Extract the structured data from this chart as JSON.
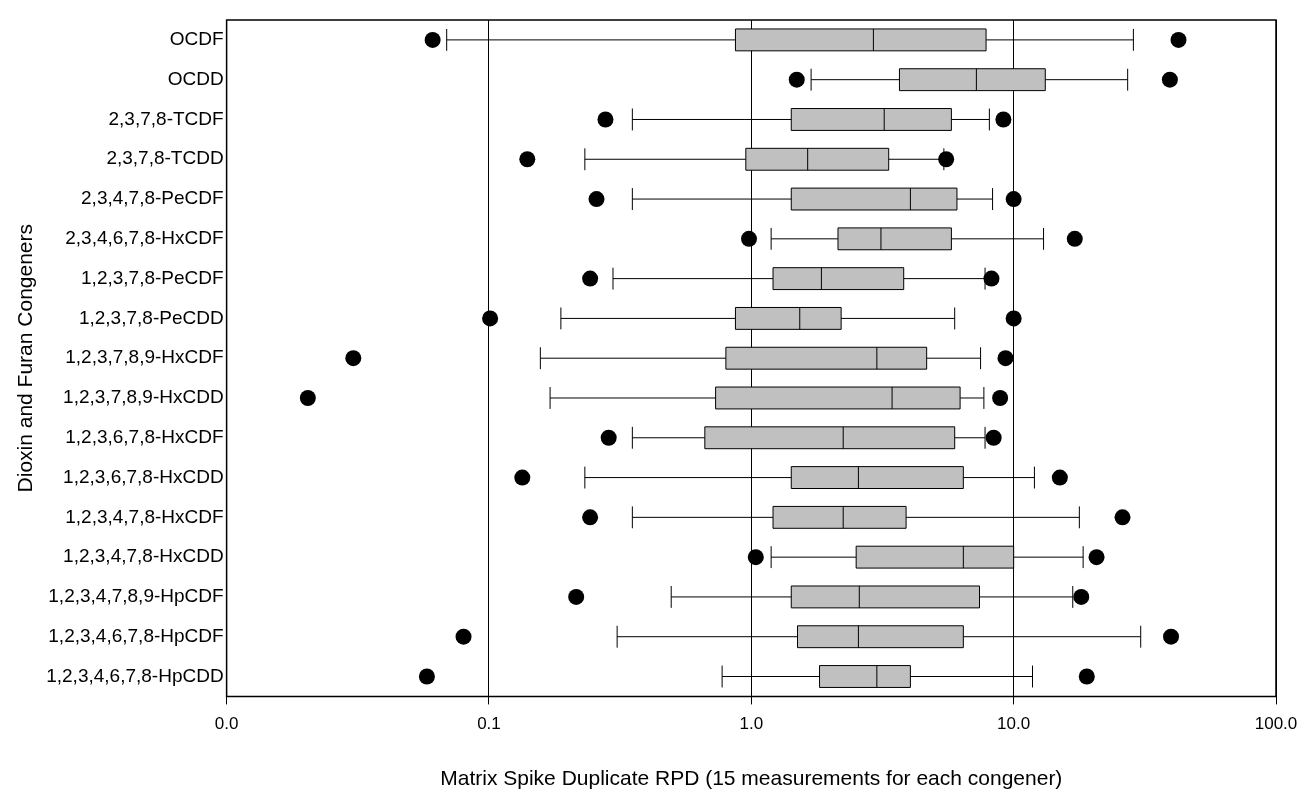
{
  "chart_data": {
    "type": "box",
    "orientation": "horizontal",
    "log": "x",
    "grid": "x",
    "legend": false,
    "xlabel": "Matrix Spike Duplicate RPD (15 measurements for each congener)",
    "ylabel": "Dioxin and Furan Congeners",
    "categories": [
      "OCDF",
      "OCDD",
      "2,3,7,8-TCDF",
      "2,3,7,8-TCDD",
      "2,3,4,7,8-PeCDF",
      "2,3,4,6,7,8-HxCDF",
      "1,2,3,7,8-PeCDF",
      "1,2,3,7,8-PeCDD",
      "1,2,3,7,8,9-HxCDF",
      "1,2,3,7,8,9-HxCDD",
      "1,2,3,6,7,8-HxCDF",
      "1,2,3,6,7,8-HxCDD",
      "1,2,3,4,7,8-HxCDF",
      "1,2,3,4,7,8-HxCDD",
      "1,2,3,4,7,8,9-HpCDF",
      "1,2,3,4,6,7,8-HpCDF",
      "1,2,3,4,6,7,8-HpCDD"
    ],
    "xlim": [
      0.01,
      100
    ],
    "xticks": [
      {
        "value": 0.01,
        "label": "0.0"
      },
      0.1,
      {
        "value": 1,
        "label": "1.0"
      },
      {
        "value": 10,
        "label": "10.0"
      },
      {
        "value": 100,
        "label": "100.0"
      }
    ],
    "series": [
      {
        "color": "#c0c0c0",
        "boxes": [
          {
            "low": 0.069,
            "q1": 0.87,
            "median": 2.92,
            "q3": 7.85,
            "high": 28.6,
            "outliers": [
              0.061,
              42.5
            ]
          },
          {
            "low": 1.69,
            "q1": 3.67,
            "median": 7.21,
            "q3": 13.2,
            "high": 27.2,
            "outliers": [
              1.49,
              39.4
            ]
          },
          {
            "low": 0.352,
            "q1": 1.42,
            "median": 3.21,
            "q3": 5.79,
            "high": 8.08,
            "outliers": [
              0.278,
              9.14
            ]
          },
          {
            "low": 0.232,
            "q1": 0.953,
            "median": 1.64,
            "q3": 3.34,
            "high": 5.42,
            "outliers": [
              0.14,
              5.53
            ]
          },
          {
            "low": 0.352,
            "q1": 1.42,
            "median": 4.04,
            "q3": 6.08,
            "high": 8.31,
            "outliers": [
              0.257,
              10.0
            ]
          },
          {
            "low": 1.19,
            "q1": 2.14,
            "median": 3.12,
            "q3": 5.79,
            "high": 13.0,
            "outliers": [
              0.98,
              17.1
            ]
          },
          {
            "low": 0.297,
            "q1": 1.21,
            "median": 1.85,
            "q3": 3.81,
            "high": 7.78,
            "outliers": [
              0.243,
              8.23
            ]
          },
          {
            "low": 0.188,
            "q1": 0.87,
            "median": 1.53,
            "q3": 2.2,
            "high": 5.96,
            "outliers": [
              0.101,
              10.0
            ]
          },
          {
            "low": 0.157,
            "q1": 0.8,
            "median": 3.01,
            "q3": 4.66,
            "high": 7.48,
            "outliers": [
              0.0304,
              9.31
            ]
          },
          {
            "low": 0.171,
            "q1": 0.731,
            "median": 3.44,
            "q3": 6.25,
            "high": 7.7,
            "outliers": [
              0.0204,
              8.88
            ]
          },
          {
            "low": 0.352,
            "q1": 0.665,
            "median": 2.24,
            "q3": 5.96,
            "high": 7.78,
            "outliers": [
              0.286,
              8.39
            ]
          },
          {
            "low": 0.232,
            "q1": 1.42,
            "median": 2.56,
            "q3": 6.43,
            "high": 12.0,
            "outliers": [
              0.134,
              15.0
            ]
          },
          {
            "low": 0.352,
            "q1": 1.21,
            "median": 2.24,
            "q3": 3.89,
            "high": 17.8,
            "outliers": [
              0.243,
              26.0
            ]
          },
          {
            "low": 1.19,
            "q1": 2.51,
            "median": 6.43,
            "q3": 10.0,
            "high": 18.4,
            "outliers": [
              1.04,
              20.7
            ]
          },
          {
            "low": 0.495,
            "q1": 1.42,
            "median": 2.58,
            "q3": 7.41,
            "high": 16.8,
            "outliers": [
              0.215,
              18.1
            ]
          },
          {
            "low": 0.308,
            "q1": 1.5,
            "median": 2.56,
            "q3": 6.43,
            "high": 30.5,
            "outliers": [
              0.08,
              39.8
            ]
          },
          {
            "low": 0.774,
            "q1": 1.82,
            "median": 3.01,
            "q3": 4.04,
            "high": 11.8,
            "outliers": [
              0.058,
              19.0
            ]
          }
        ]
      }
    ]
  }
}
